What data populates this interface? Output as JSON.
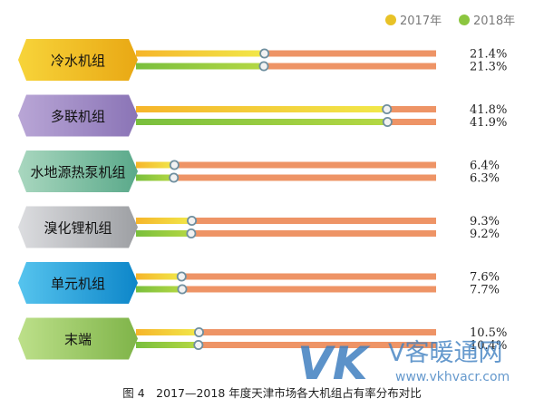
{
  "chart_data": {
    "type": "bar",
    "title": "图 4　2017—2018 年度天津市场各大机组占有率分布对比",
    "legend_position": "top-right",
    "ylim": [
      0,
      50
    ],
    "categories": [
      "冷水机组",
      "多联机组",
      "水地源热泵机组",
      "溴化锂机组",
      "单元机组",
      "末端"
    ],
    "series": [
      {
        "name": "2017年",
        "values": [
          21.4,
          41.8,
          6.4,
          9.3,
          7.6,
          10.5
        ],
        "labels": [
          "21.4%",
          "41.8%",
          "6.4%",
          "9.3%",
          "7.6%",
          "10.5%"
        ]
      },
      {
        "name": "2018年",
        "values": [
          21.3,
          41.9,
          6.3,
          9.2,
          7.7,
          10.4
        ],
        "labels": [
          "21.3%",
          "41.9%",
          "6.3%",
          "9.2%",
          "7.7%",
          "10.4%"
        ]
      }
    ]
  },
  "colors": {
    "legend_2017": "#e8c227",
    "legend_2018": "#8cc63f",
    "track": "#ee9466",
    "cat_fill": [
      "#f2c51d",
      "#a28cc4",
      "#7fc3a4",
      "#bcbec0",
      "#1fa8e0",
      "#9cc86a"
    ]
  },
  "watermark": {
    "logo": "VK",
    "brand": "V客暖通网",
    "url": "www.vkhvacr.com"
  }
}
